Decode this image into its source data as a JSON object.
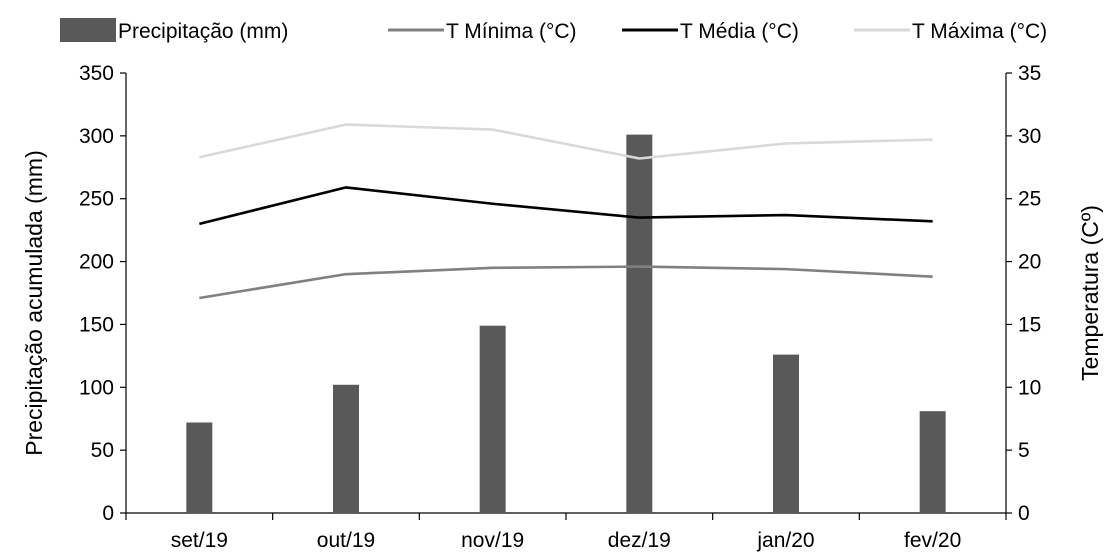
{
  "chart_data": {
    "type": "bar",
    "categories": [
      "set/19",
      "out/19",
      "nov/19",
      "dez/19",
      "jan/20",
      "fev/20"
    ],
    "series": [
      {
        "name": "Precipitação (mm)",
        "kind": "bar",
        "axis": "left",
        "color": "#595959",
        "values": [
          72,
          102,
          149,
          301,
          126,
          81
        ]
      },
      {
        "name": "T Mínima (°C)",
        "kind": "line",
        "axis": "right",
        "color": "#808080",
        "values": [
          17.1,
          19.0,
          19.5,
          19.6,
          19.4,
          18.8
        ]
      },
      {
        "name": "T Média (°C)",
        "kind": "line",
        "axis": "right",
        "color": "#000000",
        "values": [
          23.0,
          25.9,
          24.6,
          23.5,
          23.7,
          23.2
        ]
      },
      {
        "name": "T Máxima (°C)",
        "kind": "line",
        "axis": "right",
        "color": "#d9d9d9",
        "values": [
          28.3,
          30.9,
          30.5,
          28.2,
          29.4,
          29.7
        ]
      }
    ],
    "ylabel": "Precipitação acumulada (mm)",
    "y2label": "Temperatura (Cº)",
    "ylim": [
      0,
      350
    ],
    "y2lim": [
      0,
      35
    ],
    "yticks": [
      0,
      50,
      100,
      150,
      200,
      250,
      300,
      350
    ],
    "y2ticks": [
      0,
      5,
      10,
      15,
      20,
      25,
      30,
      35
    ],
    "grid": false,
    "legend_position": "top"
  }
}
